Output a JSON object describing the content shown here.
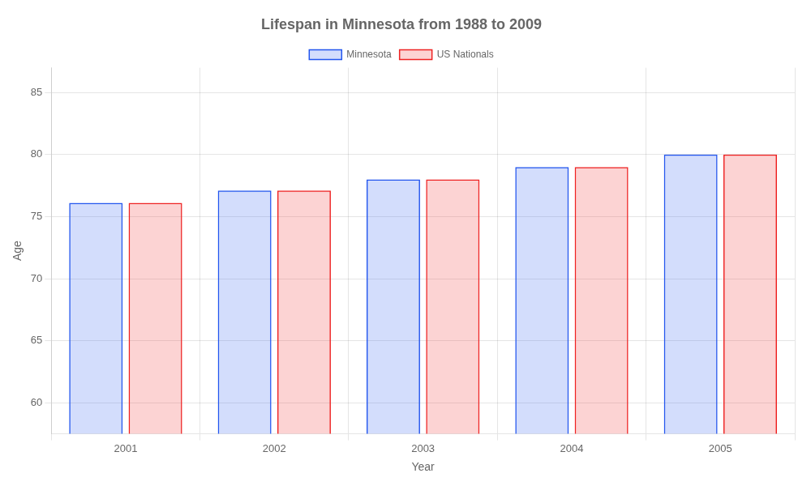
{
  "chart_data": {
    "type": "bar",
    "title": "Lifespan in Minnesota from 1988 to 2009",
    "xlabel": "Year",
    "ylabel": "Age",
    "categories": [
      "2001",
      "2002",
      "2003",
      "2004",
      "2005"
    ],
    "series": [
      {
        "name": "Minnesota",
        "color": "#2255ee",
        "values": [
          76.1,
          77.1,
          78.0,
          79.0,
          80.0
        ]
      },
      {
        "name": "US Nationals",
        "color": "#ee2222",
        "values": [
          76.1,
          77.1,
          78.0,
          79.0,
          80.0
        ]
      }
    ],
    "ylim": [
      57.5,
      87
    ],
    "yticks": [
      60,
      65,
      70,
      75,
      80,
      85
    ],
    "grid": true,
    "legend": "top"
  }
}
